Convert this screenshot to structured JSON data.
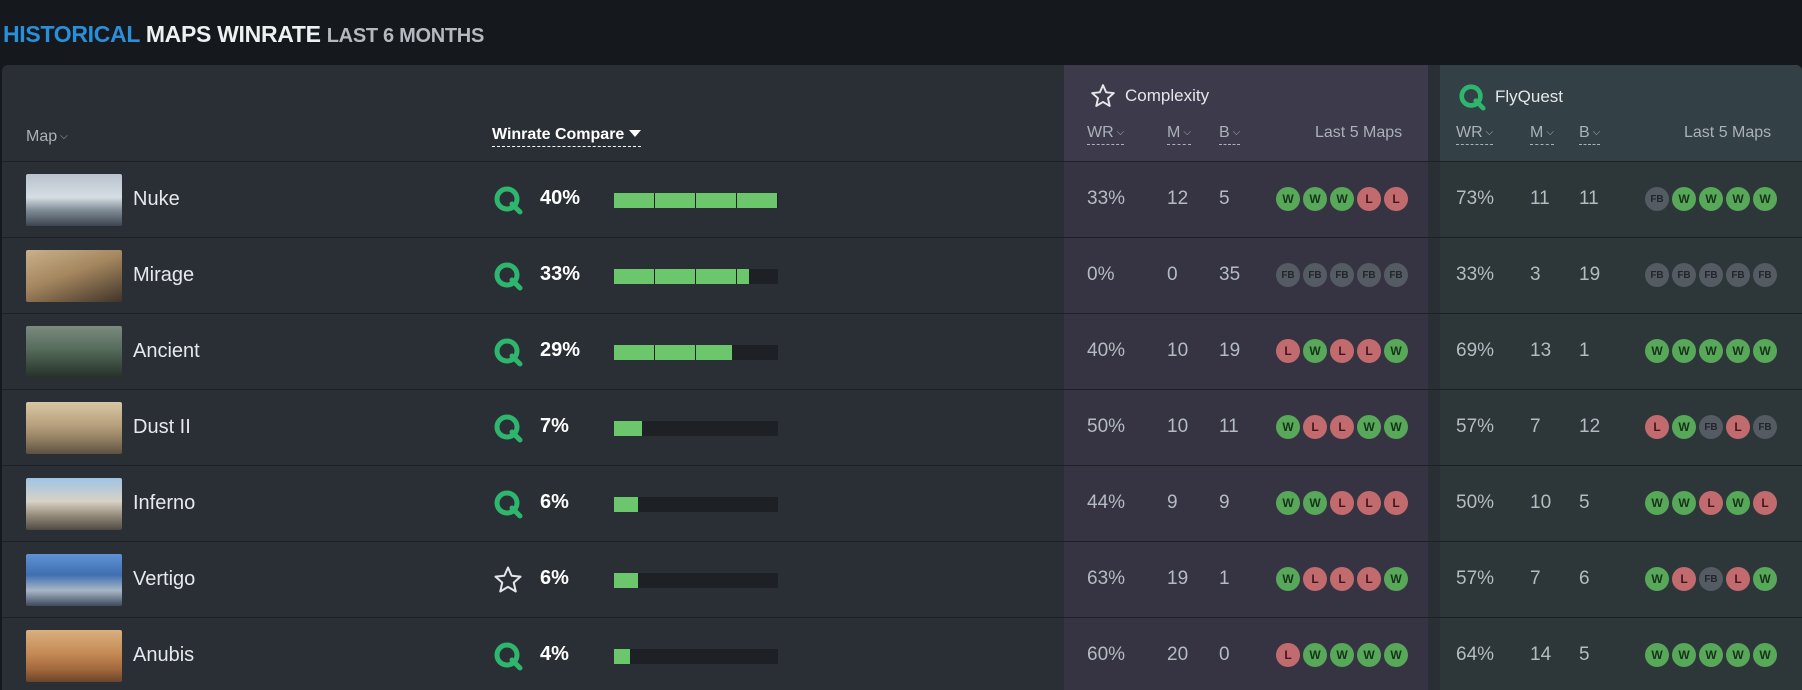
{
  "title": {
    "part1": "HISTORICAL",
    "part2": "MAPS WINRATE",
    "part3": "LAST 6 MONTHS"
  },
  "colors": {
    "accent_blue": "#2a8fd9",
    "win": "#58a85a",
    "loss": "#c26b6f",
    "bar_fill": "#6cc66b",
    "complexity_column": "#363442",
    "flyquest_column": "#2d3639"
  },
  "header": {
    "map_label": "Map",
    "compare_label": "Winrate Compare",
    "team1": {
      "name": "Complexity",
      "icon": "star-icon",
      "wr": "WR",
      "m": "M",
      "b": "B",
      "last5": "Last 5 Maps"
    },
    "team2": {
      "name": "FlyQuest",
      "icon": "flyquest-logo-icon",
      "wr": "WR",
      "m": "M",
      "b": "B",
      "last5": "Last 5 Maps"
    }
  },
  "rows": [
    {
      "map": "Nuke",
      "compare_icon": "flyquest-logo-icon",
      "compare": "40%",
      "compare_value": 40,
      "t1": {
        "wr": "33%",
        "m": "12",
        "b": "5",
        "last5": [
          "W",
          "W",
          "W",
          "L",
          "L"
        ]
      },
      "t2": {
        "wr": "73%",
        "m": "11",
        "b": "11",
        "last5": [
          "FB",
          "W",
          "W",
          "W",
          "W"
        ]
      }
    },
    {
      "map": "Mirage",
      "compare_icon": "flyquest-logo-icon",
      "compare": "33%",
      "compare_value": 33,
      "t1": {
        "wr": "0%",
        "m": "0",
        "b": "35",
        "last5": [
          "FB",
          "FB",
          "FB",
          "FB",
          "FB"
        ]
      },
      "t2": {
        "wr": "33%",
        "m": "3",
        "b": "19",
        "last5": [
          "FB",
          "FB",
          "FB",
          "FB",
          "FB"
        ]
      }
    },
    {
      "map": "Ancient",
      "compare_icon": "flyquest-logo-icon",
      "compare": "29%",
      "compare_value": 29,
      "t1": {
        "wr": "40%",
        "m": "10",
        "b": "19",
        "last5": [
          "L",
          "W",
          "L",
          "L",
          "W"
        ]
      },
      "t2": {
        "wr": "69%",
        "m": "13",
        "b": "1",
        "last5": [
          "W",
          "W",
          "W",
          "W",
          "W"
        ]
      }
    },
    {
      "map": "Dust II",
      "compare_icon": "flyquest-logo-icon",
      "compare": "7%",
      "compare_value": 7,
      "t1": {
        "wr": "50%",
        "m": "10",
        "b": "11",
        "last5": [
          "W",
          "L",
          "L",
          "W",
          "W"
        ]
      },
      "t2": {
        "wr": "57%",
        "m": "7",
        "b": "12",
        "last5": [
          "L",
          "W",
          "FB",
          "L",
          "FB"
        ]
      }
    },
    {
      "map": "Inferno",
      "compare_icon": "flyquest-logo-icon",
      "compare": "6%",
      "compare_value": 6,
      "t1": {
        "wr": "44%",
        "m": "9",
        "b": "9",
        "last5": [
          "W",
          "W",
          "L",
          "L",
          "L"
        ]
      },
      "t2": {
        "wr": "50%",
        "m": "10",
        "b": "5",
        "last5": [
          "W",
          "W",
          "L",
          "W",
          "L"
        ]
      }
    },
    {
      "map": "Vertigo",
      "compare_icon": "star-icon",
      "compare": "6%",
      "compare_value": 6,
      "t1": {
        "wr": "63%",
        "m": "19",
        "b": "1",
        "last5": [
          "W",
          "L",
          "L",
          "L",
          "W"
        ]
      },
      "t2": {
        "wr": "57%",
        "m": "7",
        "b": "6",
        "last5": [
          "W",
          "L",
          "FB",
          "L",
          "W"
        ]
      }
    },
    {
      "map": "Anubis",
      "compare_icon": "flyquest-logo-icon",
      "compare": "4%",
      "compare_value": 4,
      "t1": {
        "wr": "60%",
        "m": "20",
        "b": "0",
        "last5": [
          "L",
          "W",
          "W",
          "W",
          "W"
        ]
      },
      "t2": {
        "wr": "64%",
        "m": "14",
        "b": "5",
        "last5": [
          "W",
          "W",
          "W",
          "W",
          "W"
        ]
      }
    }
  ]
}
